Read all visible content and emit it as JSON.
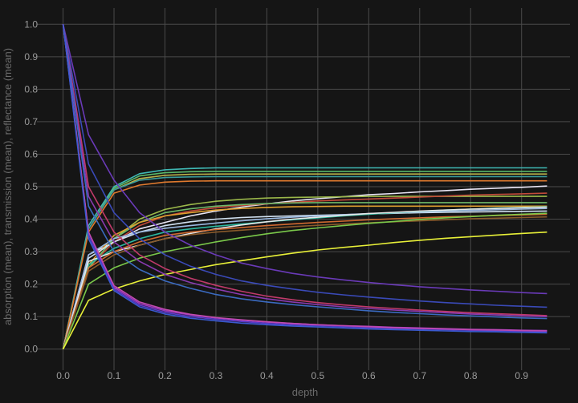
{
  "chart_data": {
    "type": "line",
    "xlabel": "depth",
    "ylabel": "absorption (mean), transmission (mean), reflectance (mean)",
    "xlim": [
      -0.045,
      0.995
    ],
    "ylim": [
      -0.055,
      1.05
    ],
    "grid": true,
    "background": "#151515",
    "x_ticks": [
      "0.0",
      "0.1",
      "0.2",
      "0.3",
      "0.4",
      "0.5",
      "0.6",
      "0.7",
      "0.8",
      "0.9"
    ],
    "y_ticks": [
      "0.0",
      "0.1",
      "0.2",
      "0.3",
      "0.4",
      "0.5",
      "0.6",
      "0.7",
      "0.8",
      "0.9",
      "1.0"
    ],
    "x": [
      0.0,
      0.05,
      0.1,
      0.15,
      0.2,
      0.25,
      0.3,
      0.35,
      0.4,
      0.45,
      0.5,
      0.55,
      0.6,
      0.65,
      0.7,
      0.75,
      0.8,
      0.85,
      0.9,
      0.95
    ],
    "series": [
      {
        "color": "#3fb8b4",
        "values": [
          0.0,
          0.38,
          0.5,
          0.54,
          0.552,
          0.556,
          0.558,
          0.558,
          0.558,
          0.558,
          0.558,
          0.558,
          0.558,
          0.558,
          0.558,
          0.558,
          0.558,
          0.558,
          0.558,
          0.558
        ]
      },
      {
        "color": "#5ab86a",
        "values": [
          0.0,
          0.37,
          0.495,
          0.533,
          0.543,
          0.546,
          0.547,
          0.547,
          0.547,
          0.547,
          0.547,
          0.547,
          0.547,
          0.547,
          0.547,
          0.547,
          0.547,
          0.547,
          0.547,
          0.547
        ]
      },
      {
        "color": "#b8b24a",
        "values": [
          0.0,
          0.37,
          0.49,
          0.525,
          0.535,
          0.538,
          0.539,
          0.539,
          0.539,
          0.539,
          0.539,
          0.539,
          0.539,
          0.539,
          0.539,
          0.539,
          0.539,
          0.539,
          0.539,
          0.539
        ]
      },
      {
        "color": "#3a9b9b",
        "values": [
          0.0,
          0.37,
          0.49,
          0.52,
          0.528,
          0.53,
          0.531,
          0.531,
          0.531,
          0.531,
          0.531,
          0.531,
          0.531,
          0.531,
          0.531,
          0.531,
          0.531,
          0.531,
          0.531,
          0.531
        ]
      },
      {
        "color": "#e07a2e",
        "values": [
          0.0,
          0.36,
          0.48,
          0.505,
          0.514,
          0.517,
          0.518,
          0.518,
          0.518,
          0.518,
          0.518,
          0.518,
          0.518,
          0.518,
          0.518,
          0.518,
          0.518,
          0.518,
          0.518,
          0.518
        ]
      },
      {
        "color": "#eae6f5",
        "values": [
          0.0,
          0.29,
          0.33,
          0.37,
          0.39,
          0.41,
          0.425,
          0.437,
          0.447,
          0.456,
          0.463,
          0.469,
          0.475,
          0.479,
          0.484,
          0.488,
          0.492,
          0.495,
          0.498,
          0.502
        ]
      },
      {
        "color": "#9bb84a",
        "values": [
          0.0,
          0.25,
          0.34,
          0.4,
          0.43,
          0.445,
          0.455,
          0.461,
          0.465,
          0.467,
          0.468,
          0.469,
          0.47,
          0.47,
          0.47,
          0.47,
          0.47,
          0.47,
          0.47,
          0.47
        ]
      },
      {
        "color": "#c24a3a",
        "values": [
          0.0,
          0.25,
          0.33,
          0.38,
          0.41,
          0.425,
          0.435,
          0.442,
          0.447,
          0.452,
          0.456,
          0.459,
          0.462,
          0.465,
          0.468,
          0.471,
          0.474,
          0.476,
          0.478,
          0.48
        ]
      },
      {
        "color": "#6fb868",
        "values": [
          0.0,
          0.25,
          0.34,
          0.39,
          0.42,
          0.432,
          0.44,
          0.445,
          0.448,
          0.45,
          0.451,
          0.451,
          0.451,
          0.451,
          0.451,
          0.451,
          0.451,
          0.451,
          0.451,
          0.451
        ]
      },
      {
        "color": "#e0a030",
        "values": [
          0.0,
          0.26,
          0.35,
          0.39,
          0.41,
          0.42,
          0.428,
          0.433,
          0.436,
          0.438,
          0.439,
          0.44,
          0.44,
          0.44,
          0.44,
          0.44,
          0.44,
          0.44,
          0.44,
          0.44
        ]
      },
      {
        "color": "#d0e0f0",
        "values": [
          0.0,
          0.28,
          0.33,
          0.36,
          0.38,
          0.392,
          0.4,
          0.405,
          0.408,
          0.41,
          0.412,
          0.414,
          0.416,
          0.418,
          0.42,
          0.421,
          0.422,
          0.423,
          0.424,
          0.425
        ]
      },
      {
        "color": "#9ab8e0",
        "values": [
          0.0,
          0.29,
          0.34,
          0.36,
          0.372,
          0.38,
          0.388,
          0.395,
          0.401,
          0.406,
          0.41,
          0.414,
          0.417,
          0.42,
          0.422,
          0.425,
          0.427,
          0.429,
          0.431,
          0.433
        ]
      },
      {
        "color": "#2bb8a0",
        "values": [
          0.0,
          0.26,
          0.31,
          0.34,
          0.36,
          0.37,
          0.378,
          0.385,
          0.392,
          0.398,
          0.404,
          0.41,
          0.415,
          0.42,
          0.424,
          0.428,
          0.431,
          0.434,
          0.436,
          0.438
        ]
      },
      {
        "color": "#e6e6e6",
        "values": [
          0.0,
          0.27,
          0.3,
          0.32,
          0.34,
          0.356,
          0.37,
          0.382,
          0.392,
          0.4,
          0.406,
          0.412,
          0.417,
          0.421,
          0.425,
          0.428,
          0.431,
          0.433,
          0.435,
          0.437
        ]
      },
      {
        "color": "#d06a30",
        "values": [
          0.0,
          0.25,
          0.3,
          0.33,
          0.35,
          0.36,
          0.368,
          0.374,
          0.38,
          0.385,
          0.39,
          0.394,
          0.398,
          0.401,
          0.404,
          0.407,
          0.409,
          0.411,
          0.413,
          0.415
        ]
      },
      {
        "color": "#8a5a2a",
        "values": [
          0.0,
          0.24,
          0.29,
          0.32,
          0.34,
          0.352,
          0.36,
          0.366,
          0.372,
          0.377,
          0.381,
          0.385,
          0.389,
          0.392,
          0.395,
          0.398,
          0.401,
          0.403,
          0.405,
          0.407
        ]
      },
      {
        "color": "#7ac84a",
        "values": [
          0.0,
          0.2,
          0.25,
          0.28,
          0.3,
          0.315,
          0.33,
          0.343,
          0.355,
          0.365,
          0.373,
          0.38,
          0.387,
          0.393,
          0.399,
          0.404,
          0.408,
          0.412,
          0.415,
          0.418
        ]
      },
      {
        "color": "#e8f038",
        "values": [
          0.0,
          0.15,
          0.185,
          0.21,
          0.23,
          0.245,
          0.26,
          0.272,
          0.284,
          0.295,
          0.305,
          0.313,
          0.32,
          0.328,
          0.335,
          0.341,
          0.346,
          0.351,
          0.356,
          0.36
        ]
      },
      {
        "color": "#6a3ab8",
        "values": [
          1.0,
          0.66,
          0.52,
          0.42,
          0.36,
          0.32,
          0.29,
          0.265,
          0.248,
          0.233,
          0.222,
          0.213,
          0.205,
          0.198,
          0.192,
          0.187,
          0.182,
          0.178,
          0.174,
          0.171
        ]
      },
      {
        "color": "#3a4ab8",
        "values": [
          1.0,
          0.57,
          0.42,
          0.34,
          0.29,
          0.255,
          0.23,
          0.21,
          0.196,
          0.185,
          0.175,
          0.167,
          0.16,
          0.154,
          0.148,
          0.143,
          0.139,
          0.135,
          0.132,
          0.129
        ]
      },
      {
        "color": "#c03a6a",
        "values": [
          1.0,
          0.5,
          0.36,
          0.29,
          0.248,
          0.218,
          0.196,
          0.178,
          0.163,
          0.152,
          0.143,
          0.136,
          0.13,
          0.125,
          0.12,
          0.116,
          0.112,
          0.109,
          0.106,
          0.103
        ]
      },
      {
        "color": "#8a3ab0",
        "values": [
          1.0,
          0.47,
          0.33,
          0.27,
          0.23,
          0.205,
          0.185,
          0.168,
          0.155,
          0.145,
          0.137,
          0.13,
          0.125,
          0.12,
          0.116,
          0.112,
          0.108,
          0.105,
          0.102,
          0.1
        ]
      },
      {
        "color": "#3a6ac0",
        "values": [
          1.0,
          0.44,
          0.3,
          0.245,
          0.21,
          0.187,
          0.168,
          0.155,
          0.145,
          0.137,
          0.13,
          0.124,
          0.118,
          0.113,
          0.109,
          0.105,
          0.102,
          0.099,
          0.096,
          0.094
        ]
      },
      {
        "color": "#9a3ac0",
        "values": [
          1.0,
          0.36,
          0.19,
          0.14,
          0.118,
          0.105,
          0.096,
          0.089,
          0.083,
          0.079,
          0.075,
          0.072,
          0.07,
          0.067,
          0.065,
          0.063,
          0.061,
          0.06,
          0.058,
          0.057
        ]
      },
      {
        "color": "#5a3ac8",
        "values": [
          1.0,
          0.35,
          0.185,
          0.135,
          0.113,
          0.1,
          0.092,
          0.085,
          0.079,
          0.075,
          0.072,
          0.069,
          0.066,
          0.064,
          0.062,
          0.06,
          0.058,
          0.056,
          0.055,
          0.053
        ]
      },
      {
        "color": "#c04ab0",
        "values": [
          1.0,
          0.36,
          0.195,
          0.145,
          0.122,
          0.107,
          0.097,
          0.09,
          0.084,
          0.079,
          0.075,
          0.072,
          0.069,
          0.066,
          0.064,
          0.062,
          0.06,
          0.059,
          0.057,
          0.056
        ]
      },
      {
        "color": "#3a5ad0",
        "values": [
          1.0,
          0.34,
          0.18,
          0.13,
          0.108,
          0.095,
          0.087,
          0.08,
          0.075,
          0.071,
          0.068,
          0.065,
          0.062,
          0.06,
          0.058,
          0.056,
          0.054,
          0.053,
          0.051,
          0.05
        ]
      }
    ]
  }
}
